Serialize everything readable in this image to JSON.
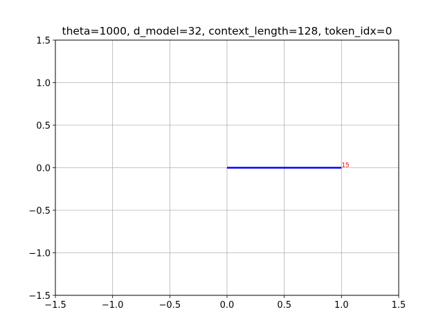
{
  "chart_data": {
    "type": "line",
    "title": "theta=1000, d_model=32, context_length=128, token_idx=0",
    "xlabel": "",
    "ylabel": "",
    "xlim": [
      -1.5,
      1.5
    ],
    "ylim": [
      -1.5,
      1.5
    ],
    "x_ticks": [
      -1.5,
      -1.0,
      -0.5,
      0.0,
      0.5,
      1.0,
      1.5
    ],
    "y_ticks": [
      -1.5,
      -1.0,
      -0.5,
      0.0,
      0.5,
      1.0,
      1.5
    ],
    "x_tick_labels": [
      "−1.5",
      "−1.0",
      "−0.5",
      "0.0",
      "0.5",
      "1.0",
      "1.5"
    ],
    "y_tick_labels": [
      "−1.5",
      "−1.0",
      "−0.5",
      "0.0",
      "0.5",
      "1.0",
      "1.5"
    ],
    "grid": true,
    "colors": {
      "vectors": "#0000ff",
      "labels": "#ff0000",
      "grid": "#b0b0b0"
    },
    "vectors": [
      {
        "x": [
          0,
          1.0
        ],
        "y": [
          0,
          0.0
        ]
      }
    ],
    "point_labels": [
      {
        "text": "15",
        "x": 1.0,
        "y": 0.0
      }
    ]
  }
}
